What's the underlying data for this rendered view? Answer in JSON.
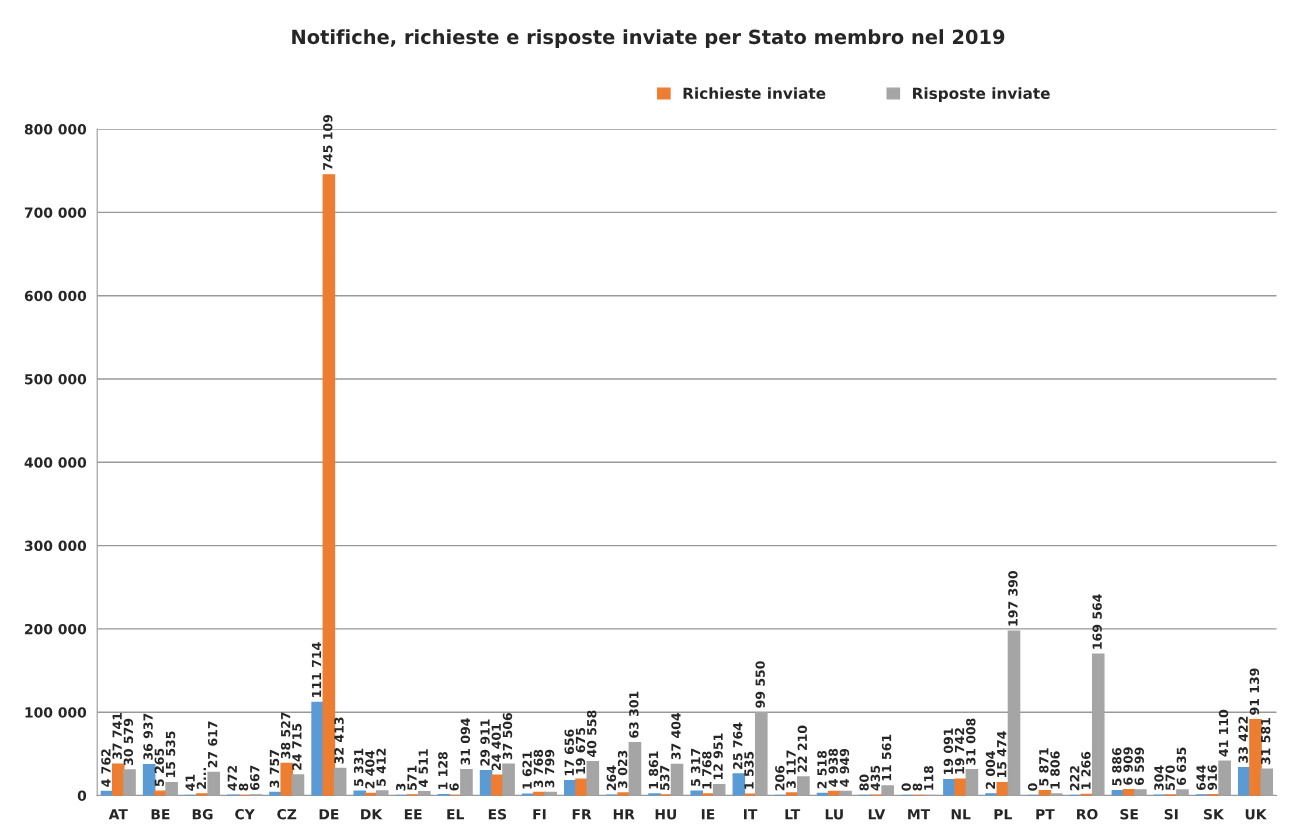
{
  "chart_data": {
    "type": "bar",
    "title": "Notifiche, richieste e risposte inviate per Stato membro nel 2019",
    "categories": [
      "AT",
      "BE",
      "BG",
      "CY",
      "CZ",
      "DE",
      "DK",
      "EE",
      "EL",
      "ES",
      "FI",
      "FR",
      "HR",
      "HU",
      "IE",
      "IT",
      "LT",
      "LU",
      "LV",
      "MT",
      "NL",
      "PL",
      "PT",
      "RO",
      "SE",
      "SI",
      "SK",
      "UK"
    ],
    "series": [
      {
        "color": "#5b9bd5",
        "values": [
          4762,
          36937,
          41,
          472,
          3757,
          111714,
          5331,
          3,
          1128,
          29911,
          1621,
          17656,
          264,
          1861,
          5317,
          25764,
          206,
          2518,
          80,
          0,
          19091,
          2004,
          0,
          222,
          5886,
          304,
          644,
          33422
        ],
        "value_labels": [
          "4 762",
          "36 937",
          "41",
          "472",
          "3 757",
          "111 714",
          "5 331",
          "3",
          "1 128",
          "29 911",
          "1 621",
          "17 656",
          "264",
          "1 861",
          "5 317",
          "25 764",
          "206",
          "2 518",
          "80",
          "0",
          "19 091",
          "2 004",
          "0",
          "222",
          "5 886",
          "304",
          "644",
          "33 422"
        ]
      },
      {
        "name": "Richieste inviate",
        "color": "#ed7d31",
        "values": [
          37741,
          5265,
          2000,
          8,
          38527,
          745109,
          2404,
          571,
          6,
          24401,
          3768,
          19675,
          3023,
          537,
          1768,
          1535,
          3117,
          4938,
          435,
          8,
          19742,
          15474,
          5871,
          1266,
          6909,
          570,
          916,
          91139
        ],
        "value_labels": [
          "37 741",
          "5 265",
          "2...",
          "8",
          "38 527",
          "745 109",
          "2 404",
          "571",
          "6",
          "24 401",
          "3 768",
          "19 675",
          "3 023",
          "537",
          "1 768",
          "1 535",
          "3 117",
          "4 938",
          "435",
          "8",
          "19 742",
          "15 474",
          "5 871",
          "1 266",
          "6 909",
          "570",
          "916",
          "91 139"
        ]
      },
      {
        "name": "Risposte inviate",
        "color": "#a5a5a5",
        "values": [
          30579,
          15535,
          27617,
          667,
          24715,
          32413,
          5412,
          4511,
          31094,
          37506,
          3799,
          40558,
          63301,
          37404,
          12951,
          99550,
          22210,
          4949,
          11561,
          118,
          31008,
          197390,
          1806,
          169564,
          6599,
          6635,
          41110,
          31581
        ],
        "value_labels": [
          "30 579",
          "15 535",
          "27 617",
          "667",
          "24 715",
          "32 413",
          "5 412",
          "4 511",
          "31 094",
          "37 506",
          "3 799",
          "40 558",
          "63 301",
          "37 404",
          "12 951",
          "99 550",
          "22 210",
          "4 949",
          "11 561",
          "118",
          "31 008",
          "197 390",
          "1 806",
          "169 564",
          "6 599",
          "6 635",
          "41 110",
          "31 581"
        ]
      }
    ],
    "ylim": [
      0,
      800000
    ],
    "yticks": [
      {
        "value": 0,
        "label": "0"
      },
      {
        "value": 100000,
        "label": "100 000"
      },
      {
        "value": 200000,
        "label": "200 000"
      },
      {
        "value": 300000,
        "label": "300 000"
      },
      {
        "value": 400000,
        "label": "400 000"
      },
      {
        "value": 500000,
        "label": "500 000"
      },
      {
        "value": 600000,
        "label": "600 000"
      },
      {
        "value": 700000,
        "label": "700 000"
      },
      {
        "value": 800000,
        "label": "800 000"
      }
    ],
    "grid": "y",
    "legend": "top right"
  }
}
